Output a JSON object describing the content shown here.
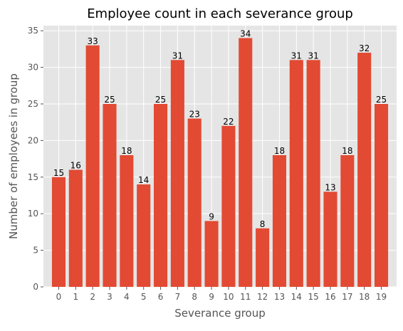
{
  "chart_data": {
    "type": "bar",
    "title": "Employee count in each severance group",
    "xlabel": "Severance group",
    "ylabel": "Number of employees in group",
    "categories": [
      "0",
      "1",
      "2",
      "3",
      "4",
      "5",
      "6",
      "7",
      "8",
      "9",
      "10",
      "11",
      "12",
      "13",
      "14",
      "15",
      "16",
      "17",
      "18",
      "19"
    ],
    "values": [
      15,
      16,
      33,
      25,
      18,
      14,
      25,
      31,
      23,
      9,
      22,
      34,
      8,
      18,
      31,
      31,
      13,
      18,
      32,
      25
    ],
    "yticks": [
      0,
      5,
      10,
      15,
      20,
      25,
      30,
      35
    ],
    "ylim": [
      0,
      35.7
    ],
    "grid": true,
    "style": "ggplot",
    "colors": {
      "bar": "#E24A33",
      "background": "#E5E5E5",
      "grid": "#FFFFFF"
    }
  }
}
